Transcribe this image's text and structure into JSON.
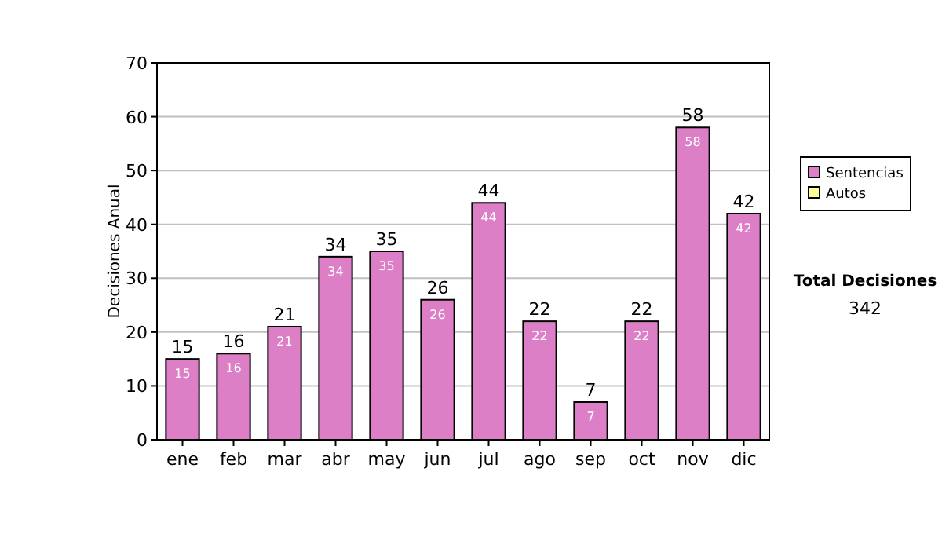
{
  "chart_data": {
    "type": "bar",
    "stacked": true,
    "ylabel": "Decisiones Anual",
    "categories": [
      "ene",
      "feb",
      "mar",
      "abr",
      "may",
      "jun",
      "jul",
      "ago",
      "sep",
      "oct",
      "nov",
      "dic"
    ],
    "series": [
      {
        "name": "Sentencias",
        "color": "#dc7fc6",
        "values": [
          15,
          16,
          21,
          34,
          35,
          26,
          44,
          22,
          7,
          22,
          58,
          42
        ],
        "value_labels": [
          "15",
          "16",
          "21",
          "34",
          "35",
          "26",
          "44",
          "22",
          "7",
          "22",
          "58",
          "42"
        ]
      },
      {
        "name": "Autos",
        "color": "#ffff99",
        "values": [
          0,
          0,
          0,
          0,
          0,
          0,
          0,
          0,
          0,
          0,
          0,
          0
        ],
        "value_labels": [
          null,
          null,
          null,
          null,
          null,
          null,
          null,
          null,
          null,
          null,
          null,
          null
        ]
      }
    ],
    "totals": [
      "15",
      "16",
      "21",
      "34",
      "35",
      "26",
      "44",
      "22",
      "7",
      "22",
      "58",
      "42"
    ],
    "ylim": [
      0,
      70
    ],
    "yticks": [
      0,
      10,
      20,
      30,
      40,
      50,
      60,
      70
    ],
    "grid": "y",
    "legend": "right",
    "annotations": [
      "Total Decisiones",
      "342"
    ]
  }
}
